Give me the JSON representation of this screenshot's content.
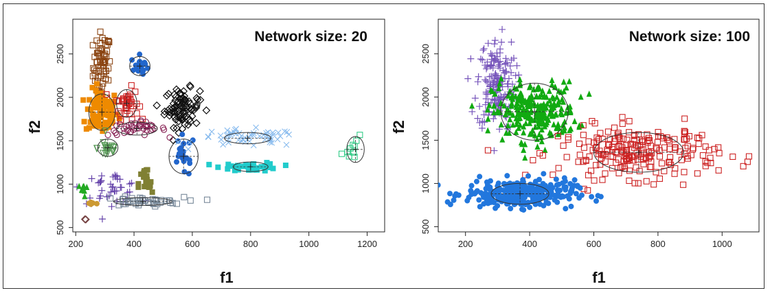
{
  "chart_data": [
    {
      "type": "scatter",
      "title": "Network size: 20",
      "xlabel": "f1",
      "ylabel": "f2",
      "xlim": [
        190,
        1260
      ],
      "ylim": [
        450,
        2900
      ],
      "xticks": [
        200,
        400,
        600,
        800,
        1000,
        1200
      ],
      "yticks": [
        500,
        1000,
        1500,
        2000,
        2500
      ],
      "grid": false,
      "clusters": [
        {
          "color": "#8b4513",
          "marker": "square-open",
          "cx": 290,
          "cy": 2350,
          "sx": 15,
          "sy": 200,
          "n": 70,
          "ellipse": false
        },
        {
          "color": "#ee8a00",
          "marker": "square",
          "cx": 290,
          "cy": 1830,
          "sx": 28,
          "sy": 130,
          "n": 90,
          "ellipse": true,
          "rx": 45,
          "ry": 210
        },
        {
          "color": "#cc2222",
          "marker": "square-open",
          "cx": 375,
          "cy": 1930,
          "sx": 20,
          "sy": 90,
          "n": 40,
          "ellipse": true,
          "rx": 35,
          "ry": 160
        },
        {
          "color": "#2266cc",
          "marker": "circle",
          "cx": 420,
          "cy": 2360,
          "sx": 15,
          "sy": 60,
          "n": 18,
          "ellipse": true,
          "rx": 35,
          "ry": 110
        },
        {
          "color": "#111111",
          "marker": "diamond-open",
          "cx": 565,
          "cy": 1880,
          "sx": 30,
          "sy": 110,
          "n": 90,
          "ellipse": false
        },
        {
          "color": "#882255",
          "marker": "circle-open",
          "cx": 410,
          "cy": 1640,
          "sx": 50,
          "sy": 40,
          "n": 40,
          "ellipse": true,
          "rx": 70,
          "ry": 75
        },
        {
          "color": "#559955",
          "marker": "triangle-down-open",
          "cx": 310,
          "cy": 1420,
          "sx": 18,
          "sy": 60,
          "n": 22,
          "ellipse": true,
          "rx": 35,
          "ry": 100
        },
        {
          "color": "#2266cc",
          "marker": "circle",
          "cx": 570,
          "cy": 1320,
          "sx": 20,
          "sy": 120,
          "n": 20,
          "ellipse": true,
          "rx": 50,
          "ry": 200
        },
        {
          "color": "#88bbee",
          "marker": "cross-x",
          "cx": 790,
          "cy": 1530,
          "sx": 90,
          "sy": 50,
          "n": 55,
          "ellipse": true,
          "rx": 80,
          "ry": 65
        },
        {
          "color": "#22cccc",
          "marker": "square",
          "cx": 800,
          "cy": 1200,
          "sx": 50,
          "sy": 25,
          "n": 40,
          "ellipse": true,
          "rx": 60,
          "ry": 55
        },
        {
          "color": "#33cc88",
          "marker": "square-open",
          "cx": 1160,
          "cy": 1400,
          "sx": 25,
          "sy": 70,
          "n": 10,
          "ellipse": true,
          "rx": 30,
          "ry": 150
        },
        {
          "color": "#6644aa",
          "marker": "plus",
          "cx": 320,
          "cy": 960,
          "sx": 50,
          "sy": 90,
          "n": 40,
          "ellipse": false
        },
        {
          "color": "#778899",
          "marker": "square-open",
          "cx": 430,
          "cy": 800,
          "sx": 70,
          "sy": 25,
          "n": 45,
          "ellipse": true,
          "rx": 100,
          "ry": 45
        },
        {
          "color": "#808033",
          "marker": "square",
          "cx": 440,
          "cy": 1000,
          "sx": 12,
          "sy": 100,
          "n": 20,
          "ellipse": false
        },
        {
          "color": "#22aa22",
          "marker": "triangle",
          "cx": 225,
          "cy": 930,
          "sx": 8,
          "sy": 40,
          "n": 8,
          "ellipse": false
        },
        {
          "color": "#cc9933",
          "marker": "circle",
          "cx": 255,
          "cy": 780,
          "sx": 10,
          "sy": 12,
          "n": 8,
          "ellipse": false
        },
        {
          "color": "#774444",
          "marker": "diamond-open",
          "cx": 235,
          "cy": 590,
          "sx": 3,
          "sy": 6,
          "n": 3,
          "ellipse": false
        }
      ]
    },
    {
      "type": "scatter",
      "title": "Network size: 100",
      "xlabel": "f1",
      "ylabel": "f2",
      "xlim": [
        115,
        1115
      ],
      "ylim": [
        440,
        2900
      ],
      "xticks": [
        200,
        400,
        600,
        800,
        1000
      ],
      "yticks": [
        500,
        1000,
        1500,
        2000,
        2500
      ],
      "grid": false,
      "clusters": [
        {
          "color": "#7755bb",
          "marker": "plus",
          "cx": 295,
          "cy": 2150,
          "sx": 30,
          "sy": 270,
          "n": 170,
          "ellipse": false
        },
        {
          "color": "#11aa11",
          "marker": "triangle",
          "cx": 415,
          "cy": 1830,
          "sx": 65,
          "sy": 170,
          "n": 260,
          "ellipse": true,
          "rx": 105,
          "ry": 330
        },
        {
          "color": "#cc2222",
          "marker": "square-open",
          "cx": 740,
          "cy": 1360,
          "sx": 125,
          "sy": 150,
          "n": 230,
          "ellipse": true,
          "rx": 140,
          "ry": 230
        },
        {
          "color": "#2277dd",
          "marker": "circle",
          "cx": 370,
          "cy": 880,
          "sx": 85,
          "sy": 80,
          "n": 290,
          "ellipse": true,
          "rx": 90,
          "ry": 120
        }
      ]
    }
  ]
}
